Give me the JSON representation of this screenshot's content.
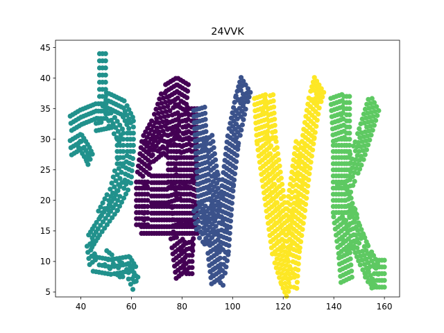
{
  "chart_data": {
    "type": "scatter",
    "title": "24VVK",
    "xlabel": "",
    "ylabel": "",
    "xlim": [
      30,
      166
    ],
    "ylim": [
      4.2,
      46.2
    ],
    "xticks": [
      40,
      60,
      80,
      100,
      120,
      140,
      160
    ],
    "yticks": [
      5,
      10,
      15,
      20,
      25,
      30,
      35,
      40,
      45
    ],
    "grid": false,
    "legend": "none",
    "marker_radius": 3.6,
    "series": [
      {
        "color": "#21918c",
        "strokes": [
          [
            [
              49,
              44
            ],
            [
              49,
              37
            ],
            [
              52,
              36.5
            ],
            [
              57,
              35.5
            ],
            [
              60,
              33
            ],
            [
              60,
              28
            ],
            [
              59,
              23
            ],
            [
              54,
              19
            ],
            [
              47,
              15
            ],
            [
              44,
              13
            ],
            [
              45,
              10
            ],
            [
              52,
              9.5
            ],
            [
              59,
              10
            ],
            [
              62,
              8
            ],
            [
              60,
              6
            ]
          ],
          [
            [
              36,
              33
            ],
            [
              40,
              34
            ],
            [
              46,
              35
            ],
            [
              50,
              35
            ]
          ],
          [
            [
              36,
              29
            ],
            [
              40,
              30
            ],
            [
              43,
              28
            ],
            [
              44,
              27
            ]
          ],
          [
            [
              46,
              33
            ],
            [
              52,
              33.5
            ],
            [
              56,
              31
            ],
            [
              56,
              26
            ],
            [
              53,
              21
            ],
            [
              48,
              17
            ]
          ],
          [
            [
              50,
              11
            ],
            [
              56,
              9
            ],
            [
              60,
              10.5
            ]
          ]
        ],
        "step": 1.2,
        "width": 1.6
      },
      {
        "color": "#440154",
        "strokes": [
          [
            [
              64,
              16
            ],
            [
              64,
              23
            ],
            [
              66,
              29
            ],
            [
              70,
              32
            ],
            [
              74,
              37
            ],
            [
              78,
              38
            ],
            [
              82,
              37
            ]
          ],
          [
            [
              64,
              17
            ],
            [
              72,
              17
            ],
            [
              80,
              17
            ],
            [
              86,
              17
            ]
          ],
          [
            [
              76,
              36
            ],
            [
              77,
              30
            ],
            [
              77,
              22
            ],
            [
              78,
              14
            ],
            [
              80,
              8
            ]
          ],
          [
            [
              80,
              36
            ],
            [
              81,
              28
            ],
            [
              81,
              20
            ],
            [
              82,
              12
            ],
            [
              82,
              8
            ]
          ],
          [
            [
              84,
              35
            ],
            [
              84,
              29
            ],
            [
              84,
              24
            ],
            [
              83,
              18
            ],
            [
              82,
              10
            ]
          ],
          [
            [
              66,
              28
            ],
            [
              72,
              30
            ],
            [
              80,
              29
            ],
            [
              86,
              27
            ]
          ],
          [
            [
              68,
              22
            ],
            [
              74,
              22
            ],
            [
              80,
              24
            ],
            [
              86,
              25
            ]
          ]
        ],
        "step": 1.1,
        "width": 2.4
      },
      {
        "color": "#3b528b",
        "strokes": [
          [
            [
              87,
              35
            ],
            [
              88,
              27
            ],
            [
              89,
              20
            ],
            [
              92,
              14
            ],
            [
              94,
              7
            ]
          ],
          [
            [
              87,
              19
            ],
            [
              88,
              16
            ],
            [
              90,
              15
            ],
            [
              93,
              17
            ]
          ],
          [
            [
              94,
              7
            ],
            [
              96,
              12
            ],
            [
              97,
              18
            ],
            [
              98,
              23
            ],
            [
              100,
              30
            ],
            [
              103,
              36
            ],
            [
              105,
              39
            ]
          ],
          [
            [
              90,
              30
            ],
            [
              92,
              24
            ],
            [
              95,
              19
            ],
            [
              97,
              15
            ]
          ]
        ],
        "step": 1.1,
        "width": 2.4
      },
      {
        "color": "#fde725",
        "strokes": [
          [
            [
              111,
              37
            ],
            [
              112,
              30
            ],
            [
              114,
              24
            ],
            [
              116,
              18
            ],
            [
              118,
              12
            ],
            [
              121,
              8
            ],
            [
              123,
              6
            ]
          ],
          [
            [
              114,
              37
            ],
            [
              115,
              30
            ],
            [
              117,
              24
            ],
            [
              119,
              18
            ],
            [
              121,
              12
            ]
          ],
          [
            [
              123,
              6
            ],
            [
              124,
              12
            ],
            [
              126,
              18
            ],
            [
              128,
              25
            ],
            [
              130,
              31
            ],
            [
              132,
              36
            ],
            [
              134,
              39
            ]
          ],
          [
            [
              121,
              12
            ],
            [
              123,
              17
            ],
            [
              125,
              23
            ],
            [
              127,
              29
            ]
          ]
        ],
        "step": 1.1,
        "width": 2.4
      },
      {
        "color": "#5ec962",
        "strokes": [
          [
            [
              141,
              37
            ],
            [
              142,
              30
            ],
            [
              142,
              24
            ],
            [
              142,
              18
            ],
            [
              144,
              12
            ],
            [
              145,
              7
            ]
          ],
          [
            [
              144,
              37
            ],
            [
              144,
              30
            ],
            [
              144,
              24
            ],
            [
              145,
              18
            ],
            [
              146,
              12
            ]
          ],
          [
            [
              143,
              21
            ],
            [
              146,
              24
            ],
            [
              150,
              28
            ],
            [
              153,
              32
            ],
            [
              156,
              36
            ]
          ],
          [
            [
              145,
              19
            ],
            [
              148,
              15
            ],
            [
              152,
              11
            ],
            [
              156,
              8
            ],
            [
              160,
              8
            ]
          ],
          [
            [
              146,
              18
            ],
            [
              150,
              13
            ],
            [
              154,
              9
            ],
            [
              157,
              7
            ]
          ]
        ],
        "step": 1.1,
        "width": 2.2
      }
    ]
  }
}
